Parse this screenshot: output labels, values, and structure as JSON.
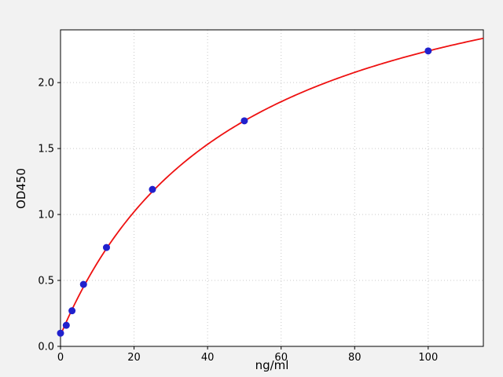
{
  "figure": {
    "background": "#f2f2f2",
    "plot_background": "#ffffff",
    "spine_color": "#000000",
    "grid_color": "#c9c9c9"
  },
  "chart_data": {
    "type": "scatter",
    "title": "",
    "xlabel": "ng/ml",
    "ylabel": "OD450",
    "xlim": [
      0,
      115
    ],
    "ylim": [
      0,
      2.4
    ],
    "xticks": [
      0,
      20,
      40,
      60,
      80,
      100
    ],
    "xtick_labels": [
      "0",
      "20",
      "40",
      "60",
      "80",
      "100"
    ],
    "yticks": [
      0,
      0.5,
      1,
      1.5,
      2
    ],
    "ytick_labels": [
      "0.0",
      "0.5",
      "1.0",
      "1.5",
      "2.0"
    ],
    "grid": "dotted",
    "legend": "none",
    "series": [
      {
        "name": "standard-points",
        "type": "scatter",
        "color": "#2121cd",
        "x": [
          0,
          1.5625,
          3.125,
          6.25,
          12.5,
          25,
          50,
          100
        ],
        "y": [
          0.1,
          0.16,
          0.27,
          0.47,
          0.75,
          1.19,
          1.71,
          2.24
        ]
      },
      {
        "name": "fit-curve",
        "type": "line",
        "color": "#ee1111",
        "fit_model": "y = a + (d - a) * x / (c + x)",
        "a": 0.085,
        "d": 3.283,
        "c": 48.4,
        "x_start": 0,
        "x_end": 115
      }
    ]
  }
}
